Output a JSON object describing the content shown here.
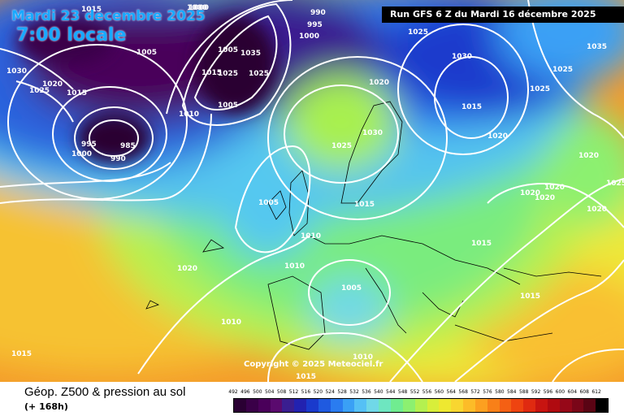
{
  "header": {
    "date": "Mardi 23 decembre 2025",
    "local_time": "7:00 locale",
    "run_info": "Run GFS 6 Z du Mardi 16 décembre 2025",
    "copyright": "Copyright © 2025 Meteociel.fr"
  },
  "legend": {
    "title": "Géop. Z500 & pression au sol",
    "subtitle": "(+ 168h)",
    "scale_values": [
      "492",
      "496",
      "500",
      "504",
      "508",
      "512",
      "516",
      "520",
      "524",
      "528",
      "532",
      "536",
      "540",
      "544",
      "548",
      "552",
      "556",
      "560",
      "564",
      "568",
      "572",
      "576",
      "580",
      "584",
      "588",
      "592",
      "596",
      "600",
      "604",
      "608",
      "612"
    ],
    "scale_colors": [
      "#2a0033",
      "#3a0048",
      "#4a005a",
      "#5a0a6e",
      "#3a1e90",
      "#2222b0",
      "#1a3acc",
      "#1f5ae0",
      "#2a7cf0",
      "#3aa0f5",
      "#55c0f5",
      "#70d8e8",
      "#6ee6c0",
      "#70ec90",
      "#8cf070",
      "#b4f050",
      "#d8ee3a",
      "#eee830",
      "#f8d630",
      "#fcbc28",
      "#fca020",
      "#f88018",
      "#f46014",
      "#ee4410",
      "#e02a10",
      "#c81410",
      "#b00a10",
      "#960818",
      "#7a0618",
      "#5a0414",
      "#000000"
    ]
  },
  "pressure_labels": [
    "1000",
    "990",
    "995",
    "1000",
    "1005",
    "1030",
    "1020",
    "1025",
    "1015",
    "1005",
    "1000",
    "985",
    "995",
    "990",
    "1015",
    "1000",
    "1015",
    "1035",
    "1025",
    "1025",
    "1005",
    "1010",
    "1020",
    "1025",
    "1030",
    "1020",
    "1025",
    "1025",
    "1015",
    "1030",
    "1035",
    "1025",
    "1020",
    "1020",
    "1020",
    "1020",
    "1025",
    "1020",
    "1005",
    "1015",
    "1010",
    "1015",
    "1010",
    "1020",
    "1005",
    "1010",
    "1015",
    "1015",
    "1010",
    "1015"
  ],
  "colors": {
    "title_blue": "#19a9ff",
    "isobar": "#ffffff"
  }
}
